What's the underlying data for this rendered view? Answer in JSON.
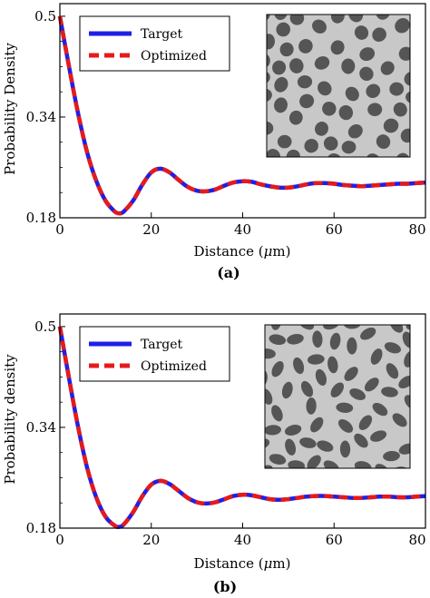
{
  "chart_data": [
    {
      "type": "line",
      "panel_label": "(a)",
      "xlabel_prefix": "Distance (",
      "xlabel_mu": "μ",
      "xlabel_suffix": "m)",
      "ylabel": "Probability Density",
      "xlim": [
        0,
        80
      ],
      "ylim": [
        0.18,
        0.52
      ],
      "xticks": [
        "0",
        "20",
        "40",
        "60",
        "80"
      ],
      "xtick_values": [
        0,
        20,
        40,
        60,
        80
      ],
      "yticks": [
        "0.18",
        "0.34",
        "0.5"
      ],
      "ytick_values": [
        0.18,
        0.34,
        0.5
      ],
      "legend_position": "top-left",
      "inset": "gray-disk-microstructure",
      "x": [
        0,
        2,
        4,
        6,
        8,
        10,
        12,
        13,
        14,
        16,
        18,
        20,
        22,
        24,
        26,
        28,
        30,
        32,
        34,
        36,
        38,
        40,
        42,
        44,
        46,
        48,
        50,
        52,
        54,
        56,
        58,
        60,
        62,
        64,
        66,
        68,
        70,
        72,
        74,
        76,
        78,
        80
      ],
      "series": [
        {
          "name": "Target",
          "color": "#1f1fe6",
          "style": "solid",
          "values": [
            0.5,
            0.42,
            0.345,
            0.283,
            0.238,
            0.207,
            0.19,
            0.187,
            0.19,
            0.207,
            0.232,
            0.252,
            0.258,
            0.252,
            0.24,
            0.229,
            0.223,
            0.222,
            0.225,
            0.231,
            0.236,
            0.238,
            0.237,
            0.233,
            0.23,
            0.228,
            0.228,
            0.23,
            0.233,
            0.235,
            0.235,
            0.234,
            0.232,
            0.231,
            0.23,
            0.231,
            0.232,
            0.233,
            0.234,
            0.234,
            0.235,
            0.236
          ]
        },
        {
          "name": "Optimized",
          "color": "#e61a1a",
          "style": "dashed",
          "values": [
            0.5,
            0.42,
            0.345,
            0.283,
            0.238,
            0.207,
            0.19,
            0.187,
            0.19,
            0.207,
            0.232,
            0.252,
            0.258,
            0.252,
            0.24,
            0.229,
            0.223,
            0.222,
            0.225,
            0.231,
            0.236,
            0.238,
            0.237,
            0.233,
            0.23,
            0.228,
            0.228,
            0.23,
            0.233,
            0.235,
            0.235,
            0.234,
            0.232,
            0.231,
            0.23,
            0.231,
            0.232,
            0.233,
            0.234,
            0.234,
            0.235,
            0.236
          ]
        }
      ]
    },
    {
      "type": "line",
      "panel_label": "(b)",
      "xlabel_prefix": "Distance (",
      "xlabel_mu": "μ",
      "xlabel_suffix": "m)",
      "ylabel": "Probability density",
      "xlim": [
        0,
        80
      ],
      "ylim": [
        0.18,
        0.52
      ],
      "xticks": [
        "0",
        "20",
        "40",
        "60",
        "80"
      ],
      "xtick_values": [
        0,
        20,
        40,
        60,
        80
      ],
      "yticks": [
        "0.18",
        "0.34",
        "0.5"
      ],
      "ytick_values": [
        0.18,
        0.34,
        0.5
      ],
      "legend_position": "top-left",
      "inset": "gray-ellipse-microstructure",
      "x": [
        0,
        2,
        4,
        6,
        8,
        10,
        12,
        13,
        14,
        16,
        18,
        20,
        22,
        24,
        26,
        28,
        30,
        32,
        34,
        36,
        38,
        40,
        42,
        44,
        46,
        48,
        50,
        52,
        54,
        56,
        58,
        60,
        62,
        64,
        66,
        68,
        70,
        72,
        74,
        76,
        78,
        80
      ],
      "series": [
        {
          "name": "Target",
          "color": "#1f1fe6",
          "style": "solid",
          "values": [
            0.5,
            0.418,
            0.34,
            0.275,
            0.228,
            0.198,
            0.184,
            0.182,
            0.186,
            0.205,
            0.23,
            0.249,
            0.255,
            0.25,
            0.239,
            0.228,
            0.221,
            0.219,
            0.221,
            0.226,
            0.231,
            0.233,
            0.232,
            0.229,
            0.226,
            0.225,
            0.226,
            0.228,
            0.23,
            0.231,
            0.231,
            0.23,
            0.229,
            0.228,
            0.228,
            0.229,
            0.23,
            0.23,
            0.229,
            0.229,
            0.23,
            0.231
          ]
        },
        {
          "name": "Optimized",
          "color": "#e61a1a",
          "style": "dashed",
          "values": [
            0.5,
            0.418,
            0.34,
            0.275,
            0.228,
            0.198,
            0.184,
            0.182,
            0.186,
            0.205,
            0.23,
            0.249,
            0.255,
            0.25,
            0.239,
            0.228,
            0.221,
            0.219,
            0.221,
            0.226,
            0.231,
            0.233,
            0.232,
            0.229,
            0.226,
            0.225,
            0.226,
            0.228,
            0.23,
            0.231,
            0.231,
            0.23,
            0.229,
            0.228,
            0.228,
            0.229,
            0.23,
            0.23,
            0.229,
            0.229,
            0.23,
            0.231
          ]
        }
      ]
    }
  ]
}
